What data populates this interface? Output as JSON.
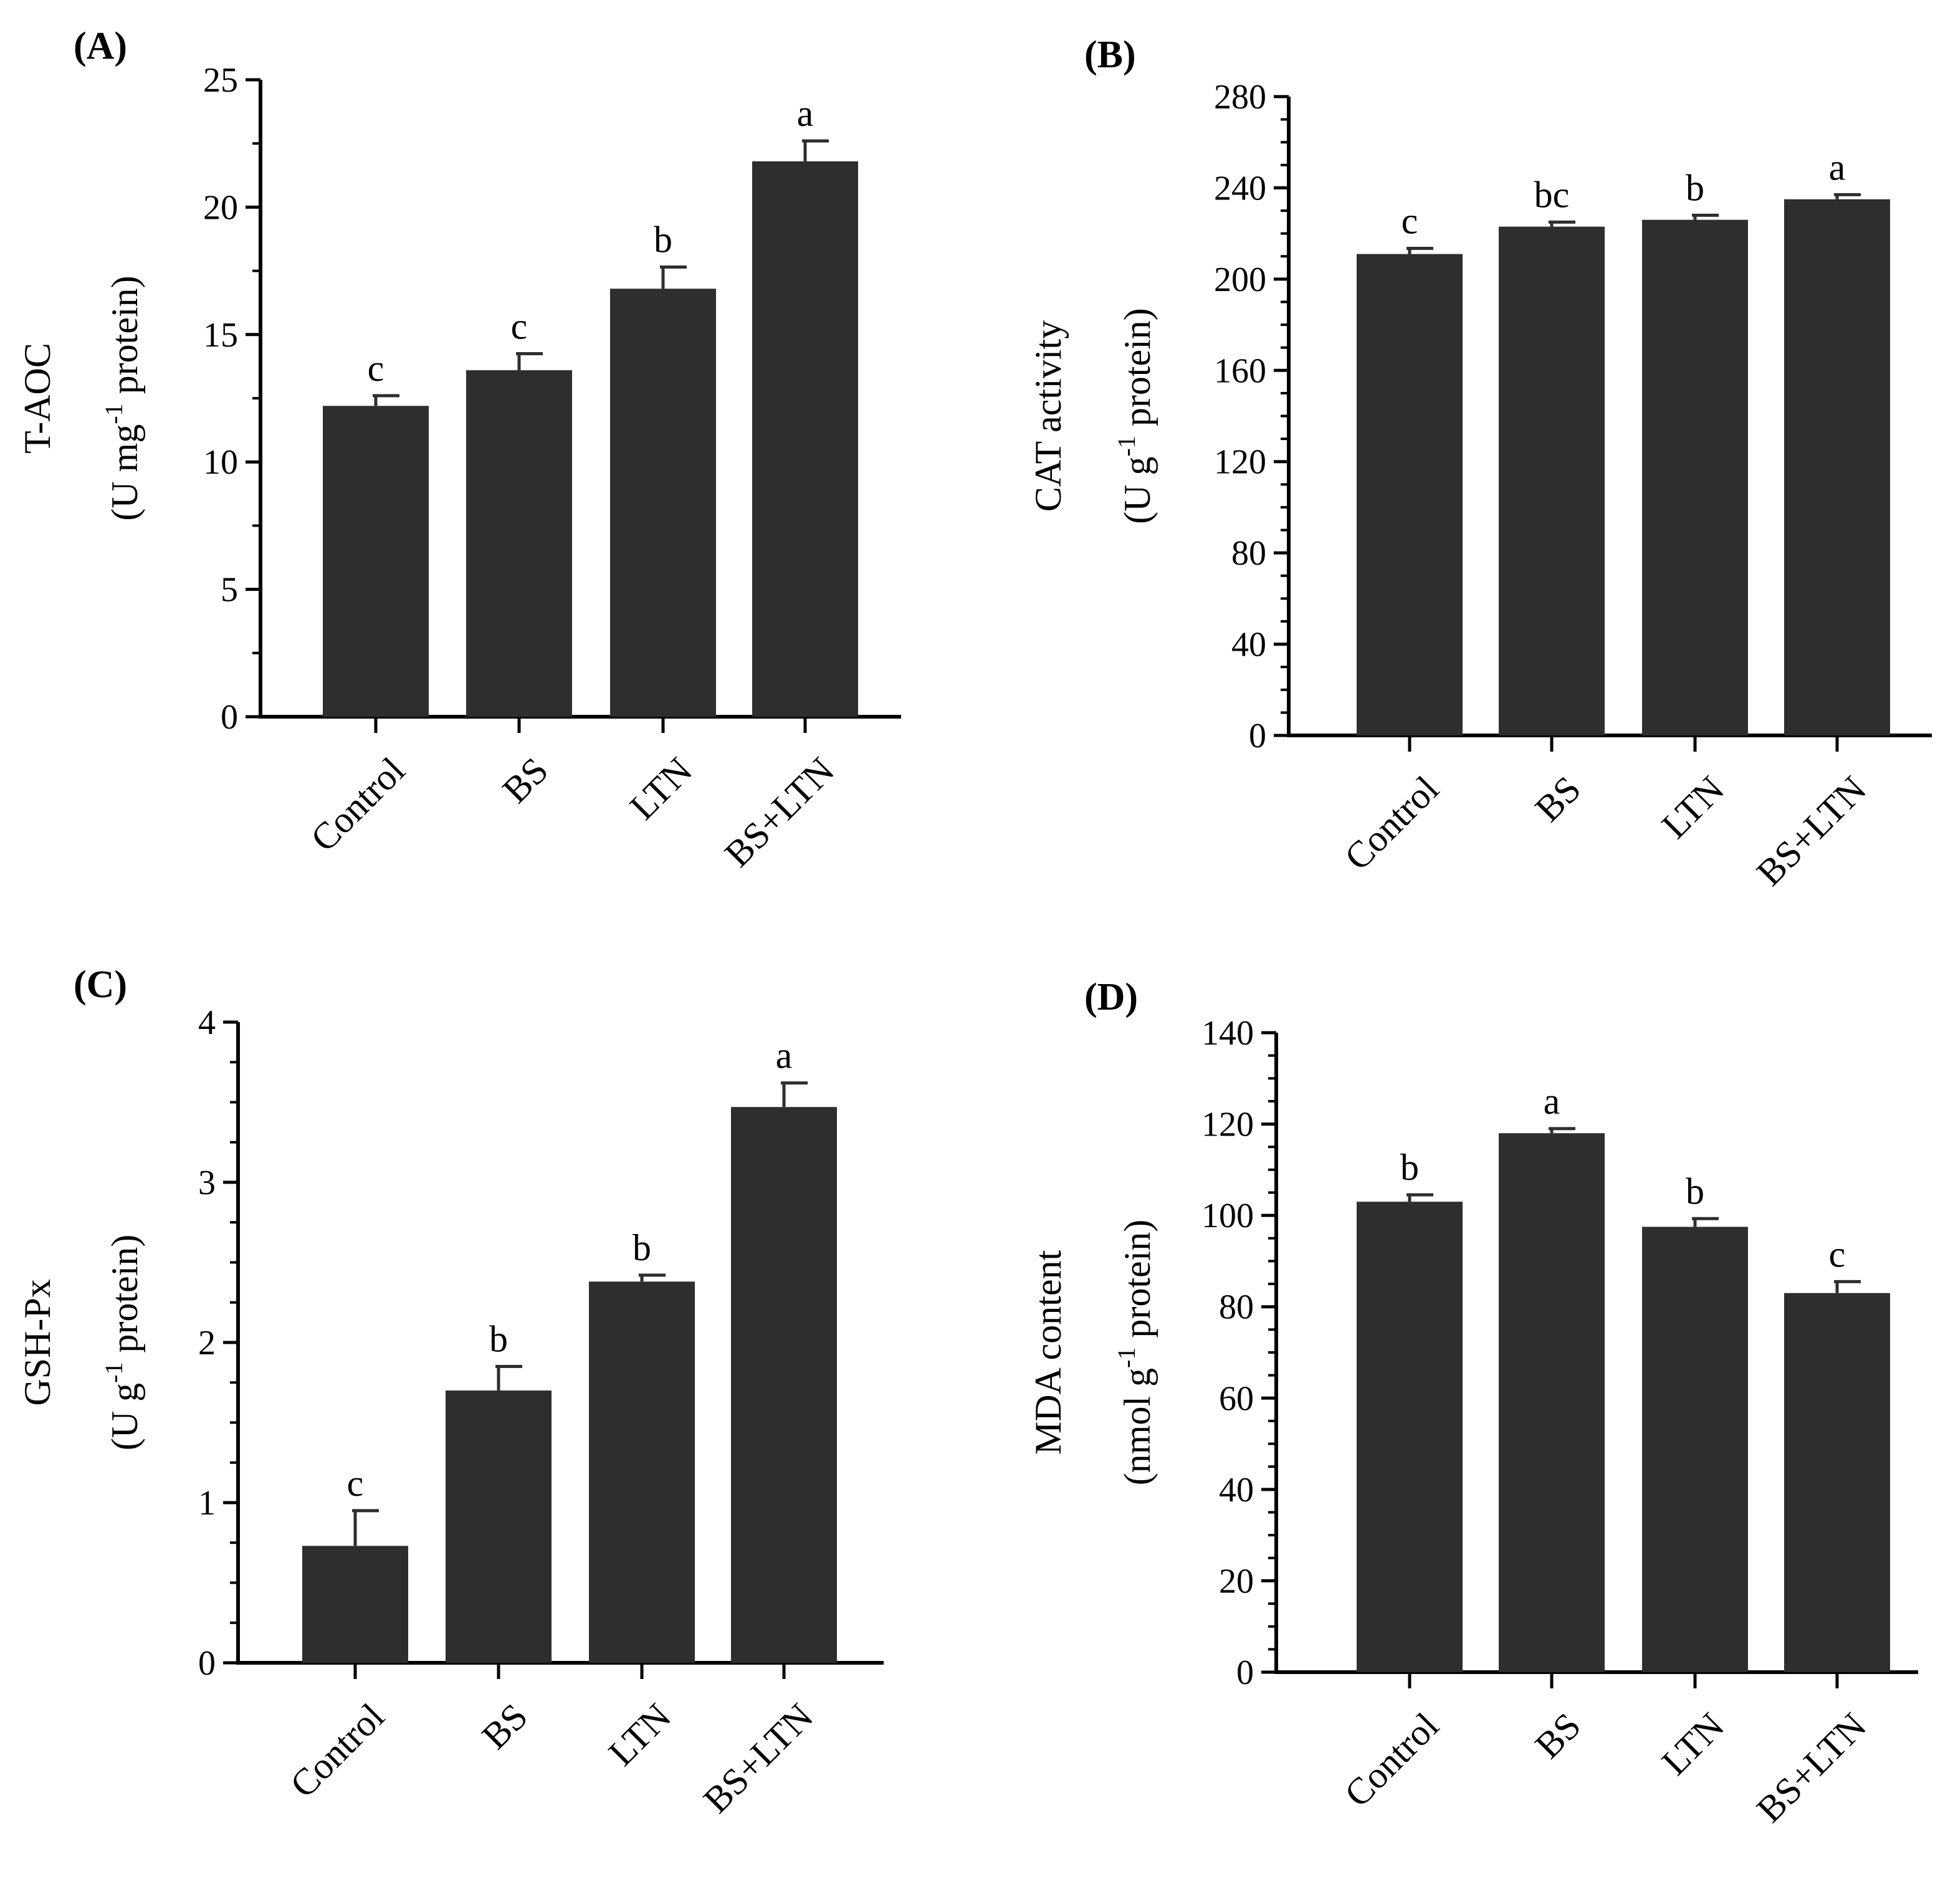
{
  "chart_data": [
    {
      "type": "bar",
      "panel": "(A)",
      "categories": [
        "Control",
        "BS",
        "LTN",
        "BS+LTN"
      ],
      "values": [
        12.2,
        13.6,
        16.8,
        21.8
      ],
      "errors": [
        0.4,
        0.65,
        0.85,
        0.8
      ],
      "significance": [
        "c",
        "c",
        "b",
        "a"
      ],
      "ylabel_line1": "T-AOC",
      "ylabel_line2_pre": "(U mg",
      "ylabel_sup": "-1",
      "ylabel_line2_post": " protein)",
      "ylim": [
        0,
        25
      ],
      "yticks": [
        "0",
        "5",
        "10",
        "15",
        "20",
        "25"
      ],
      "minor_per_major": 1,
      "bar_color": "#2e2e2e"
    },
    {
      "type": "bar",
      "panel": "(B)",
      "categories": [
        "Control",
        "BS",
        "LTN",
        "BS+LTN"
      ],
      "values": [
        211,
        223,
        226,
        235
      ],
      "errors": [
        2.5,
        2,
        2,
        2
      ],
      "significance": [
        "c",
        "bc",
        "b",
        "a"
      ],
      "ylabel_line1": "CAT activity",
      "ylabel_line2_pre": "(U g",
      "ylabel_sup": "-1",
      "ylabel_line2_post": " protein)",
      "ylim": [
        0,
        280
      ],
      "yticks": [
        "0",
        "40",
        "80",
        "120",
        "160",
        "200",
        "240",
        "280"
      ],
      "minor_per_major": 3,
      "bar_color": "#2e2e2e"
    },
    {
      "type": "bar",
      "panel": "(C)",
      "categories": [
        "Control",
        "BS",
        "LTN",
        "BS+LTN"
      ],
      "values": [
        0.73,
        1.7,
        2.38,
        3.47
      ],
      "errors": [
        0.22,
        0.15,
        0.04,
        0.15
      ],
      "significance": [
        "c",
        "b",
        "b",
        "a"
      ],
      "ylabel_line1": "GSH-Px",
      "ylabel_line2_pre": "(U g",
      "ylabel_sup": "-1",
      "ylabel_line2_post": " protein)",
      "ylim": [
        0,
        4
      ],
      "yticks": [
        "0",
        "1",
        "2",
        "3",
        "4"
      ],
      "minor_per_major": 3,
      "bar_color": "#2e2e2e"
    },
    {
      "type": "bar",
      "panel": "(D)",
      "categories": [
        "Control",
        "BS",
        "LTN",
        "BS+LTN"
      ],
      "values": [
        103,
        118,
        97.5,
        83
      ],
      "errors": [
        1.5,
        1,
        1.8,
        2.5
      ],
      "significance": [
        "b",
        "a",
        "b",
        "c"
      ],
      "ylabel_line1": "MDA content",
      "ylabel_line2_pre": "(nmol g",
      "ylabel_sup": "-1",
      "ylabel_line2_post": " protein)",
      "ylim": [
        0,
        140
      ],
      "yticks": [
        "0",
        "20",
        "40",
        "60",
        "80",
        "100",
        "120",
        "140"
      ],
      "minor_per_major": 3,
      "bar_color": "#2e2e2e"
    }
  ]
}
